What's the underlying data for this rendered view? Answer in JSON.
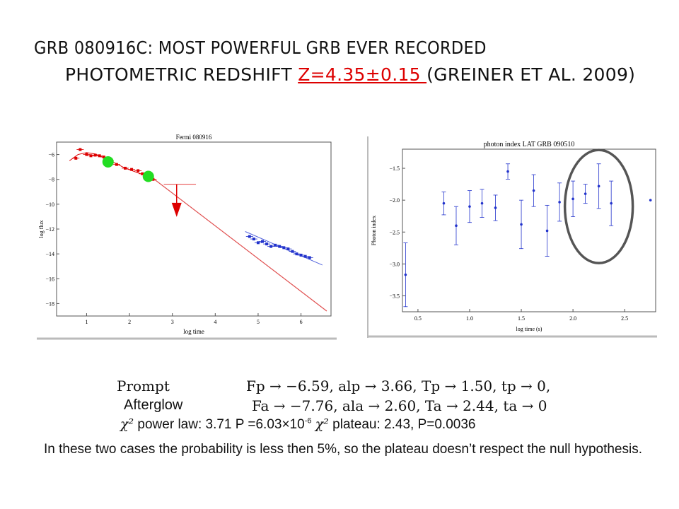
{
  "slide": {
    "title_line1": "GRB 080916C: MOST POWERFUL GRB EVER RECORDED",
    "title_line2_prefix": "PHOTOMETRIC REDSHIFT ",
    "title_line2_redshift": "Z=4.35±0.15 ",
    "title_line2_suffix": "(GREINER ET AL. 2009)",
    "prompt_label": "Prompt",
    "prompt_params": "Fp → −6.59, alp → 3.66, Tp → 1.50, tp → 0,",
    "afterglow_label": "Afterglow",
    "afterglow_params": "Fa → −7.76, ala → 2.60, Ta → 2.44, ta → 0",
    "chi_symbol": "χ²",
    "chi_powerlaw": " power law: 3.71 P =6.03×10",
    "chi_powerlaw_exp": "-6",
    "chi_plateau": " plateau: 2.43, P=0.0036",
    "conclusion": "In these two cases the probability is less then 5%, so the plateau doesn’t respect the null hypothesis.",
    "colors": {
      "red": "#dd0000",
      "green": "#22dd22",
      "blue": "#2233cc",
      "circle": "#555555"
    }
  },
  "chart_data": [
    {
      "type": "scatter",
      "title": "Fermi 080916",
      "xlabel": "log time",
      "ylabel": "log flux",
      "xlim": [
        0.3,
        6.7
      ],
      "ylim": [
        -19,
        -5
      ],
      "xticks": [
        1,
        2,
        3,
        4,
        5,
        6
      ],
      "yticks": [
        -18,
        -16,
        -14,
        -12,
        -10,
        -8,
        -6
      ],
      "series": [
        {
          "color": "#dd0000",
          "points": [
            [
              0.75,
              -6.3
            ],
            [
              0.85,
              -5.6
            ],
            [
              1.0,
              -6.0
            ],
            [
              1.1,
              -6.1
            ],
            [
              1.2,
              -6.05
            ],
            [
              1.3,
              -6.1
            ],
            [
              1.4,
              -6.2
            ],
            [
              1.55,
              -6.5
            ],
            [
              1.7,
              -6.8
            ],
            [
              1.9,
              -7.1
            ],
            [
              2.05,
              -7.2
            ],
            [
              2.2,
              -7.3
            ],
            [
              2.3,
              -7.55
            ],
            [
              2.55,
              -8.0
            ]
          ]
        },
        {
          "color": "#2233cc",
          "points": [
            [
              4.8,
              -12.6
            ],
            [
              4.9,
              -12.8
            ],
            [
              5.0,
              -13.1
            ],
            [
              5.1,
              -13.0
            ],
            [
              5.2,
              -13.2
            ],
            [
              5.3,
              -13.4
            ],
            [
              5.4,
              -13.3
            ],
            [
              5.5,
              -13.4
            ],
            [
              5.6,
              -13.5
            ],
            [
              5.7,
              -13.6
            ],
            [
              5.8,
              -13.8
            ],
            [
              5.9,
              -14.0
            ],
            [
              6.0,
              -14.1
            ],
            [
              6.1,
              -14.2
            ],
            [
              6.2,
              -14.3
            ]
          ]
        }
      ],
      "fit_prompt": [
        [
          0.6,
          -6.5
        ],
        [
          0.8,
          -6.0
        ],
        [
          1.0,
          -5.85
        ],
        [
          1.2,
          -5.95
        ],
        [
          1.5,
          -6.4
        ],
        [
          1.9,
          -7.1
        ],
        [
          2.3,
          -7.6
        ],
        [
          2.6,
          -8.05
        ]
      ],
      "fit_powerlaw": [
        [
          2.6,
          -8.05
        ],
        [
          6.6,
          -18.6
        ]
      ],
      "fit_late": [
        [
          4.7,
          -12.2
        ],
        [
          6.5,
          -14.9
        ]
      ],
      "highlight_points": [
        [
          1.5,
          -6.59
        ],
        [
          2.44,
          -7.76
        ]
      ],
      "upper_limit": {
        "x": 3.1,
        "y": -8.4,
        "xerr": [
          2.8,
          3.55
        ],
        "arrow_to": -10.8
      }
    },
    {
      "type": "scatter",
      "title": "photon index LAT GRB 090510",
      "xlabel": "log time (s)",
      "ylabel": "Photon index",
      "xlim": [
        0.35,
        2.8
      ],
      "ylim": [
        -3.75,
        -1.2
      ],
      "xticks": [
        0.5,
        1.0,
        1.5,
        2.0,
        2.5
      ],
      "yticks": [
        -3.5,
        -3.0,
        -2.5,
        -2.0,
        -1.5
      ],
      "x": [
        0.38,
        0.75,
        0.87,
        1.0,
        1.12,
        1.25,
        1.37,
        1.5,
        1.62,
        1.75,
        1.87,
        2.0,
        2.12,
        2.25,
        2.37,
        2.75
      ],
      "y": [
        -3.17,
        -2.05,
        -2.4,
        -2.1,
        -2.05,
        -2.12,
        -1.55,
        -2.38,
        -1.85,
        -2.48,
        -2.03,
        -1.98,
        -1.9,
        -1.78,
        -2.05,
        -2.0
      ],
      "yerr": [
        0.5,
        0.18,
        0.3,
        0.25,
        0.22,
        0.2,
        0.12,
        0.38,
        0.25,
        0.4,
        0.3,
        0.28,
        0.15,
        0.35,
        0.35,
        0.0
      ],
      "highlight_ellipse_center": [
        2.25,
        -2.1
      ]
    }
  ]
}
